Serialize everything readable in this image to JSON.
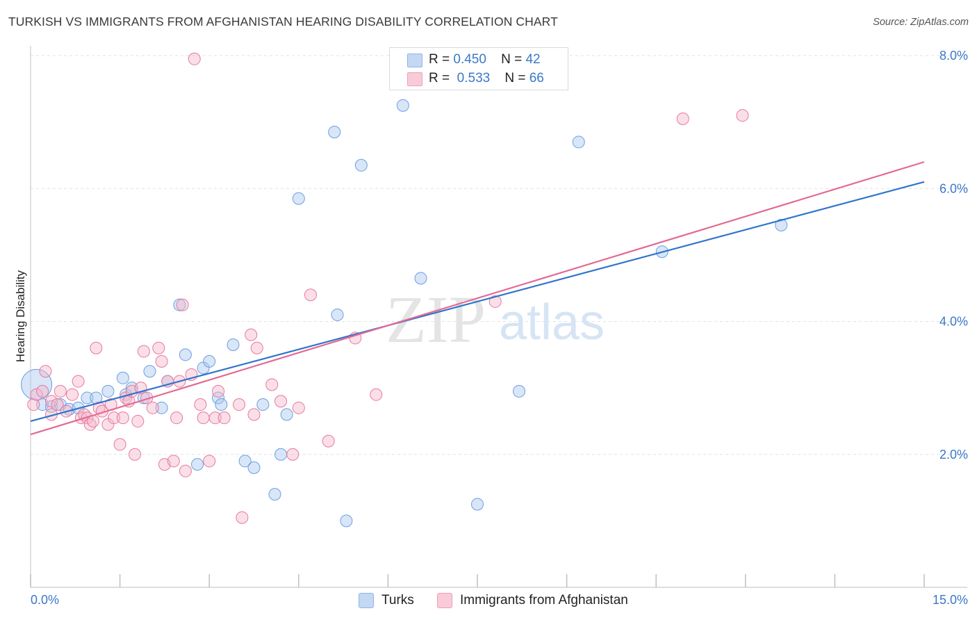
{
  "title": "TURKISH VS IMMIGRANTS FROM AFGHANISTAN HEARING DISABILITY CORRELATION CHART",
  "source": "Source: ZipAtlas.com",
  "watermark": {
    "zip": "ZIP",
    "atlas": "atlas"
  },
  "legend_top": [
    {
      "r_label": "R =",
      "r_value": "0.450",
      "n_label": "N =",
      "n_value": "42",
      "color": "#a8c8f0"
    },
    {
      "r_label": "R =",
      "r_value": "0.533",
      "n_label": "N =",
      "n_value": "66",
      "color": "#f5b8cc"
    }
  ],
  "chart_data": {
    "type": "scatter",
    "title": "TURKISH VS IMMIGRANTS FROM AFGHANISTAN HEARING DISABILITY CORRELATION CHART",
    "xlabel": "",
    "ylabel": "Hearing Disability",
    "xlim": [
      0,
      15
    ],
    "ylim": [
      0,
      8
    ],
    "x_tick_labels": [
      "0.0%",
      "15.0%"
    ],
    "y_tick_labels": [
      "2.0%",
      "4.0%",
      "6.0%",
      "8.0%"
    ],
    "y_ticks": [
      2,
      4,
      6,
      8
    ],
    "grid": true,
    "legend_position": "top-center and bottom",
    "series": [
      {
        "name": "Turks",
        "color": "#6a9fe0",
        "fill": "#a8c8f0",
        "trend": [
          [
            0,
            2.5
          ],
          [
            15,
            6.1
          ]
        ],
        "points": [
          [
            0.1,
            3.05
          ],
          [
            0.2,
            2.75
          ],
          [
            0.35,
            2.72
          ],
          [
            0.5,
            2.75
          ],
          [
            0.65,
            2.68
          ],
          [
            0.8,
            2.7
          ],
          [
            0.95,
            2.85
          ],
          [
            1.1,
            2.85
          ],
          [
            1.3,
            2.95
          ],
          [
            1.55,
            3.15
          ],
          [
            1.6,
            2.9
          ],
          [
            1.7,
            3.0
          ],
          [
            1.9,
            2.85
          ],
          [
            2.0,
            3.25
          ],
          [
            2.2,
            2.7
          ],
          [
            2.3,
            3.1
          ],
          [
            2.5,
            4.25
          ],
          [
            2.6,
            3.5
          ],
          [
            2.8,
            1.85
          ],
          [
            2.9,
            3.3
          ],
          [
            3.0,
            3.4
          ],
          [
            3.15,
            2.85
          ],
          [
            3.2,
            2.75
          ],
          [
            3.4,
            3.65
          ],
          [
            3.6,
            1.9
          ],
          [
            3.75,
            1.8
          ],
          [
            3.9,
            2.75
          ],
          [
            4.1,
            1.4
          ],
          [
            4.2,
            2.0
          ],
          [
            4.3,
            2.6
          ],
          [
            4.5,
            5.85
          ],
          [
            5.1,
            6.85
          ],
          [
            5.15,
            4.1
          ],
          [
            5.3,
            1.0
          ],
          [
            5.55,
            6.35
          ],
          [
            6.25,
            7.25
          ],
          [
            6.55,
            4.65
          ],
          [
            7.5,
            1.25
          ],
          [
            8.2,
            2.95
          ],
          [
            9.2,
            6.7
          ],
          [
            10.6,
            5.05
          ],
          [
            12.6,
            5.45
          ]
        ]
      },
      {
        "name": "Immigrants from Afghanistan",
        "color": "#e8789c",
        "fill": "#f5b8cc",
        "trend": [
          [
            0,
            2.3
          ],
          [
            15,
            6.4
          ]
        ],
        "points": [
          [
            0.05,
            2.75
          ],
          [
            0.1,
            2.9
          ],
          [
            0.2,
            2.95
          ],
          [
            0.25,
            3.25
          ],
          [
            0.35,
            2.8
          ],
          [
            0.45,
            2.75
          ],
          [
            0.5,
            2.95
          ],
          [
            0.6,
            2.65
          ],
          [
            0.7,
            2.9
          ],
          [
            0.8,
            3.1
          ],
          [
            0.85,
            2.55
          ],
          [
            0.9,
            2.6
          ],
          [
            0.95,
            2.55
          ],
          [
            1.0,
            2.45
          ],
          [
            1.05,
            2.5
          ],
          [
            1.1,
            3.6
          ],
          [
            1.15,
            2.7
          ],
          [
            1.2,
            2.65
          ],
          [
            1.3,
            2.45
          ],
          [
            1.35,
            2.75
          ],
          [
            1.4,
            2.55
          ],
          [
            1.5,
            2.15
          ],
          [
            1.55,
            2.55
          ],
          [
            1.6,
            2.85
          ],
          [
            1.65,
            2.8
          ],
          [
            1.7,
            2.95
          ],
          [
            1.75,
            2.0
          ],
          [
            1.8,
            2.5
          ],
          [
            1.85,
            3.0
          ],
          [
            1.9,
            3.55
          ],
          [
            1.95,
            2.85
          ],
          [
            2.05,
            2.7
          ],
          [
            2.15,
            3.6
          ],
          [
            2.2,
            3.4
          ],
          [
            2.25,
            1.85
          ],
          [
            2.3,
            3.1
          ],
          [
            2.4,
            1.9
          ],
          [
            2.45,
            2.55
          ],
          [
            2.5,
            3.1
          ],
          [
            2.55,
            4.25
          ],
          [
            2.6,
            1.75
          ],
          [
            2.7,
            3.2
          ],
          [
            2.75,
            7.95
          ],
          [
            2.85,
            2.75
          ],
          [
            2.9,
            2.55
          ],
          [
            3.0,
            1.9
          ],
          [
            3.1,
            2.55
          ],
          [
            3.15,
            2.95
          ],
          [
            3.25,
            2.55
          ],
          [
            3.5,
            2.75
          ],
          [
            3.55,
            1.05
          ],
          [
            3.7,
            3.8
          ],
          [
            3.75,
            2.6
          ],
          [
            3.8,
            3.6
          ],
          [
            4.05,
            3.05
          ],
          [
            4.2,
            2.8
          ],
          [
            4.4,
            2.0
          ],
          [
            4.5,
            2.7
          ],
          [
            4.7,
            4.4
          ],
          [
            5.0,
            2.2
          ],
          [
            5.45,
            3.75
          ],
          [
            5.8,
            2.9
          ],
          [
            7.8,
            4.3
          ],
          [
            10.95,
            7.05
          ],
          [
            11.95,
            7.1
          ],
          [
            0.35,
            2.6
          ]
        ]
      }
    ]
  },
  "bottom_legend": [
    {
      "label": "Turks",
      "color": "#a8c8f0"
    },
    {
      "label": "Immigrants from Afghanistan",
      "color": "#f5b8cc"
    }
  ]
}
